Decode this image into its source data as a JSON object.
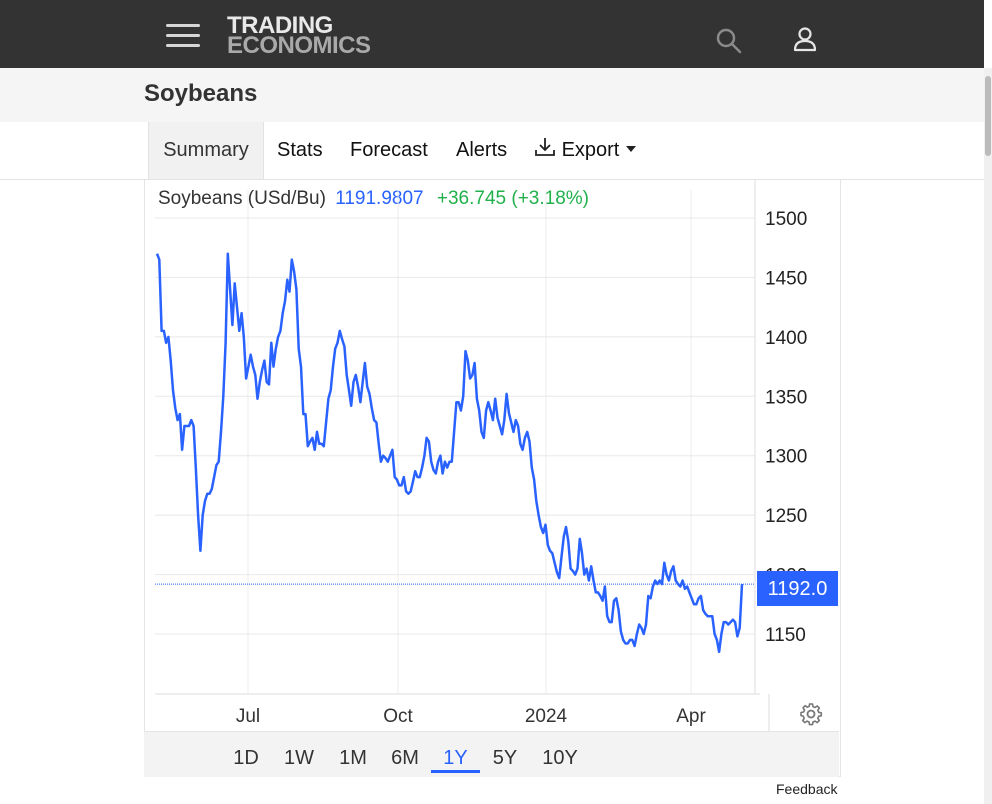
{
  "header": {
    "logo_line1": "TRADING",
    "logo_line2": "ECONOMICS",
    "menu_icon": "hamburger-menu-icon",
    "search_icon": "search-icon",
    "user_icon": "user-icon",
    "background": "#333333"
  },
  "page": {
    "title": "Soybeans"
  },
  "tabs": [
    {
      "label": "Summary",
      "active": true
    },
    {
      "label": "Stats"
    },
    {
      "label": "Forecast"
    },
    {
      "label": "Alerts"
    },
    {
      "label": "Export",
      "icon": "download-icon"
    }
  ],
  "chart": {
    "name": "Soybeans (USd/Bu)",
    "price": "1191.9807",
    "change": "+36.745 (+3.18%)",
    "last_label": "1192.0",
    "colors": {
      "line": "#2962ff",
      "change": "#21b14b",
      "price": "#2962ff"
    }
  },
  "chart_data": {
    "type": "line",
    "title": "",
    "series": [
      {
        "name": "",
        "values": [
          1470,
          1465,
          1405,
          1405,
          1395,
          1400,
          1380,
          1355,
          1340,
          1330,
          1335,
          1305,
          1325,
          1325,
          1325,
          1330,
          1325,
          1290,
          1250,
          1220,
          1250,
          1262,
          1268,
          1268,
          1272,
          1282,
          1292,
          1295,
          1320,
          1350,
          1395,
          1470,
          1440,
          1410,
          1445,
          1425,
          1405,
          1420,
          1400,
          1365,
          1375,
          1385,
          1375,
          1368,
          1348,
          1362,
          1372,
          1380,
          1362,
          1360,
          1395,
          1375,
          1390,
          1400,
          1405,
          1420,
          1430,
          1448,
          1438,
          1465,
          1455,
          1440,
          1390,
          1375,
          1335,
          1335,
          1308,
          1312,
          1315,
          1305,
          1320,
          1310,
          1310,
          1308,
          1328,
          1348,
          1355,
          1375,
          1390,
          1395,
          1405,
          1398,
          1392,
          1368,
          1355,
          1342,
          1362,
          1368,
          1358,
          1345,
          1362,
          1378,
          1358,
          1352,
          1340,
          1330,
          1328,
          1310,
          1295,
          1300,
          1298,
          1295,
          1300,
          1305,
          1282,
          1280,
          1275,
          1275,
          1282,
          1270,
          1268,
          1270,
          1278,
          1287,
          1282,
          1282,
          1290,
          1300,
          1315,
          1312,
          1295,
          1288,
          1285,
          1295,
          1300,
          1285,
          1295,
          1290,
          1295,
          1295,
          1320,
          1345,
          1345,
          1338,
          1350,
          1388,
          1380,
          1365,
          1368,
          1378,
          1348,
          1338,
          1320,
          1315,
          1338,
          1345,
          1338,
          1330,
          1348,
          1332,
          1325,
          1318,
          1330,
          1352,
          1336,
          1328,
          1320,
          1330,
          1325,
          1310,
          1305,
          1315,
          1320,
          1312,
          1290,
          1280,
          1262,
          1250,
          1240,
          1235,
          1242,
          1225,
          1220,
          1218,
          1210,
          1202,
          1197,
          1215,
          1232,
          1240,
          1228,
          1205,
          1203,
          1200,
          1205,
          1230,
          1218,
          1200,
          1205,
          1195,
          1207,
          1195,
          1185,
          1185,
          1182,
          1178,
          1190,
          1165,
          1160,
          1160,
          1178,
          1180,
          1170,
          1152,
          1145,
          1142,
          1142,
          1145,
          1145,
          1140,
          1150,
          1158,
          1155,
          1150,
          1158,
          1182,
          1180,
          1190,
          1195,
          1192,
          1195,
          1192,
          1210,
          1200,
          1195,
          1203,
          1207,
          1195,
          1192,
          1190,
          1195,
          1188,
          1190,
          1185,
          1180,
          1175,
          1175,
          1180,
          1182,
          1170,
          1167,
          1165,
          1165,
          1165,
          1150,
          1145,
          1135,
          1150,
          1160,
          1160,
          1158,
          1160,
          1162,
          1160,
          1148,
          1155,
          1192
        ],
        "color": "#2962ff"
      }
    ],
    "x_ticks": [
      "Jul",
      "Oct",
      "2024",
      "Apr"
    ],
    "y_ticks": [
      1150,
      1200,
      1250,
      1300,
      1350,
      1400,
      1450,
      1500
    ],
    "ylim": [
      1100,
      1500
    ],
    "last_value": 1192.0,
    "grid": true,
    "xlabel": "",
    "ylabel": ""
  },
  "periods": [
    "1D",
    "1W",
    "1M",
    "6M",
    "1Y",
    "5Y",
    "10Y"
  ],
  "active_period": "1Y",
  "footer": {
    "feedback": "Feedback"
  }
}
